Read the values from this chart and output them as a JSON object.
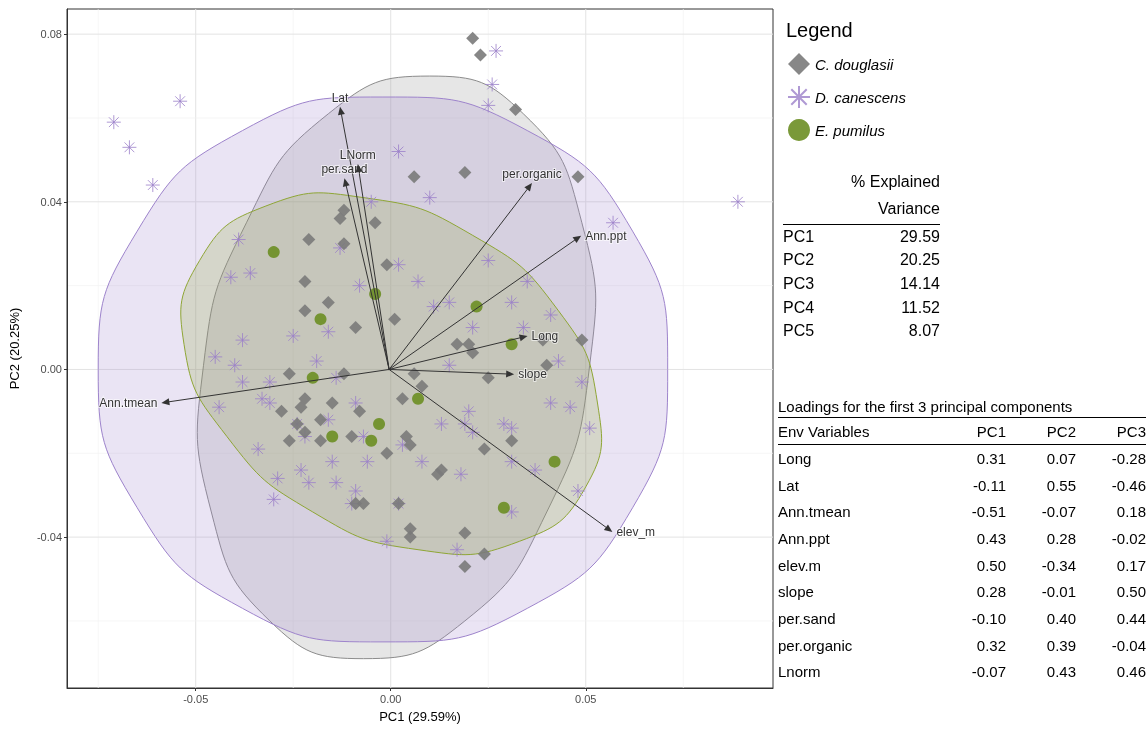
{
  "chart_data": [
    {
      "type": "scatter",
      "xlabel": "PC1 (29.59%)",
      "ylabel": "PC2 (20.25%)",
      "xlim": [
        -0.083,
        0.098
      ],
      "ylim": [
        -0.076,
        0.086
      ],
      "xticks": [
        -0.05,
        {
          "value": 0,
          "label": "0.00"
        },
        0.05
      ],
      "yticks": [
        -0.04,
        {
          "value": 0,
          "label": "0.00"
        },
        0.04,
        0.08
      ],
      "grid": true,
      "legend": "right",
      "legend_title": "Legend",
      "annotations": [
        "Long",
        "Lat",
        "Ann.tmean",
        "Ann.ppt",
        "elev_m",
        "slope",
        "per.sand",
        "per.organic",
        "LNorm"
      ],
      "series": [
        {
          "type": "area",
          "color": "#8c8c8c",
          "x": [
            0.051,
            0.049,
            0.034,
            0.01,
            -0.016,
            -0.037,
            -0.048,
            -0.046,
            -0.031,
            -0.007,
            0.019,
            0.04
          ],
          "values": [
            0.001,
            0.035,
            0.061,
            0.07,
            0.061,
            0.035,
            0.001,
            -0.034,
            -0.06,
            -0.069,
            -0.06,
            -0.034
          ]
        },
        {
          "type": "area",
          "color": "#9e84cc",
          "x": [
            0.071,
            0.062,
            0.035,
            -0.002,
            -0.038,
            -0.065,
            -0.075,
            -0.065,
            -0.038,
            -0.002,
            0.035,
            0.062
          ],
          "values": [
            0.0,
            0.033,
            0.057,
            0.065,
            0.057,
            0.033,
            0.0,
            -0.033,
            -0.057,
            -0.065,
            -0.057,
            -0.033
          ]
        },
        {
          "type": "area",
          "color": "#8fa636",
          "x": [
            0.05,
            0.053,
            0.043,
            0.021,
            -0.007,
            -0.032,
            -0.049,
            -0.053,
            -0.042,
            -0.02,
            0.007,
            0.033
          ],
          "values": [
            -0.028,
            -0.008,
            0.014,
            0.032,
            0.041,
            0.039,
            0.026,
            0.006,
            -0.016,
            -0.034,
            -0.043,
            -0.041
          ]
        },
        {
          "type": "scatter",
          "name": "C. douglasii",
          "color": "#7a7a7a",
          "marker": "diamond",
          "x": [
            0.021,
            0.023,
            0.032,
            0.006,
            0.019,
            0.048,
            -0.012,
            -0.013,
            -0.004,
            -0.021,
            -0.012,
            -0.001,
            -0.022,
            -0.016,
            -0.022,
            0.001,
            -0.009,
            0.049,
            0.017,
            0.02,
            0.039,
            -0.026,
            -0.012,
            -0.022,
            -0.028,
            -0.023,
            -0.015,
            -0.008,
            -0.024,
            -0.018,
            -0.026,
            -0.022,
            -0.018,
            -0.01,
            -0.001,
            0.003,
            0.004,
            0.005,
            -0.009,
            -0.007,
            0.002,
            0.005,
            0.005,
            0.006,
            0.021,
            0.04,
            0.025,
            0.008,
            0.031,
            0.024,
            0.012,
            0.013,
            0.019,
            0.024,
            0.019
          ],
          "values": [
            0.079,
            0.075,
            0.062,
            0.046,
            0.047,
            0.046,
            0.038,
            0.036,
            0.035,
            0.031,
            0.03,
            0.025,
            0.021,
            0.016,
            0.014,
            0.012,
            0.01,
            0.007,
            0.006,
            0.006,
            0.007,
            -0.001,
            -0.001,
            -0.007,
            -0.01,
            -0.009,
            -0.008,
            -0.01,
            -0.013,
            -0.012,
            -0.017,
            -0.015,
            -0.017,
            -0.016,
            -0.02,
            -0.007,
            -0.016,
            -0.018,
            -0.032,
            -0.032,
            -0.032,
            -0.038,
            -0.04,
            -0.001,
            0.004,
            0.001,
            -0.002,
            -0.004,
            -0.017,
            -0.019,
            -0.025,
            -0.024,
            -0.039,
            -0.044,
            -0.047
          ]
        },
        {
          "type": "scatter",
          "name": "D. canescens",
          "color": "#9b7fc9",
          "marker": "cross",
          "x": [
            -0.071,
            -0.054,
            -0.067,
            -0.061,
            0.002,
            -0.005,
            -0.039,
            -0.041,
            -0.036,
            -0.013,
            -0.008,
            0.002,
            0.007,
            -0.038,
            -0.025,
            -0.016,
            0.027,
            0.026,
            0.025,
            0.01,
            0.057,
            0.089,
            0.025,
            0.035,
            0.011,
            0.015,
            0.031,
            0.041,
            0.021,
            0.034,
            -0.045,
            -0.04,
            -0.038,
            -0.044,
            -0.031,
            -0.033,
            -0.031,
            -0.019,
            -0.014,
            -0.016,
            -0.009,
            -0.022,
            -0.034,
            -0.029,
            -0.03,
            -0.023,
            -0.021,
            -0.015,
            -0.014,
            -0.006,
            -0.009,
            -0.01,
            0.002,
            -0.001,
            0.003,
            -0.007,
            -0.024,
            0.015,
            0.043,
            0.049,
            0.041,
            0.046,
            0.051,
            0.02,
            0.013,
            0.019,
            0.021,
            0.029,
            0.031,
            0.008,
            0.018,
            0.031,
            0.037,
            0.048,
            0.031,
            0.017
          ],
          "values": [
            0.059,
            0.064,
            0.053,
            0.044,
            0.052,
            0.04,
            0.031,
            0.022,
            0.023,
            0.029,
            0.02,
            0.025,
            0.021,
            0.007,
            0.008,
            0.009,
            0.076,
            0.068,
            0.063,
            0.041,
            0.035,
            0.04,
            0.026,
            0.021,
            0.015,
            0.016,
            0.016,
            0.013,
            0.01,
            0.01,
            0.003,
            0.001,
            -0.003,
            -0.009,
            -0.003,
            -0.007,
            -0.008,
            0.002,
            -0.002,
            -0.012,
            -0.008,
            -0.016,
            -0.019,
            -0.026,
            -0.031,
            -0.024,
            -0.027,
            -0.022,
            -0.027,
            -0.022,
            -0.029,
            -0.032,
            -0.032,
            -0.041,
            -0.018,
            -0.016,
            -0.013,
            0.001,
            0.002,
            -0.003,
            -0.008,
            -0.009,
            -0.014,
            -0.01,
            -0.013,
            -0.013,
            -0.015,
            -0.013,
            -0.014,
            -0.022,
            -0.025,
            -0.022,
            -0.024,
            -0.029,
            -0.034,
            -0.043
          ]
        },
        {
          "type": "scatter",
          "name": "E. pumilus",
          "color": "#6b8e23",
          "marker": "circle",
          "x": [
            -0.03,
            -0.004,
            -0.018,
            0.022,
            0.031,
            -0.02,
            0.007,
            -0.003,
            -0.015,
            -0.005,
            0.042,
            0.029
          ],
          "values": [
            0.028,
            0.018,
            0.012,
            0.015,
            0.006,
            -0.002,
            -0.007,
            -0.013,
            -0.016,
            -0.017,
            -0.022,
            -0.033
          ]
        }
      ]
    },
    {
      "type": "other",
      "title": "% Explained Variance",
      "categories": [
        "PC1",
        "PC2",
        "PC3",
        "PC4",
        "PC5"
      ],
      "values": [
        29.59,
        20.25,
        14.14,
        11.52,
        8.07
      ],
      "data_labels": true
    },
    {
      "type": "other",
      "title": "Loadings for the first 3 principal components",
      "annotations": [
        "Env Variables"
      ],
      "categories": [
        "Long",
        "Lat",
        "Ann.tmean",
        "Ann.ppt",
        "elev.m",
        "slope",
        "per.sand",
        "per.organic",
        "Lnorm"
      ],
      "series": [
        {
          "name": "PC1",
          "values": [
            0.31,
            -0.11,
            -0.51,
            0.43,
            0.5,
            0.28,
            -0.1,
            0.32,
            -0.07
          ],
          "value_labels": [
            "0.31",
            "-0.11",
            "-0.51",
            "0.43",
            "0.50",
            "0.28",
            "-0.10",
            "0.32",
            "-0.07"
          ]
        },
        {
          "name": "PC2",
          "values": [
            0.07,
            0.55,
            -0.07,
            0.28,
            -0.34,
            -0.01,
            0.4,
            0.39,
            0.43
          ],
          "value_labels": [
            "0.07",
            "0.55",
            "-0.07",
            "0.28",
            "-0.34",
            "-0.01",
            "0.40",
            "0.39",
            "0.43"
          ]
        },
        {
          "name": "PC3",
          "values": [
            -0.28,
            -0.46,
            0.18,
            -0.02,
            0.17,
            0.5,
            0.44,
            -0.04,
            0.46
          ],
          "value_labels": [
            "-0.28",
            "-0.46",
            "0.18",
            "-0.02",
            "0.17",
            "0.50",
            "0.44",
            "-0.04",
            "0.46"
          ]
        }
      ]
    }
  ]
}
